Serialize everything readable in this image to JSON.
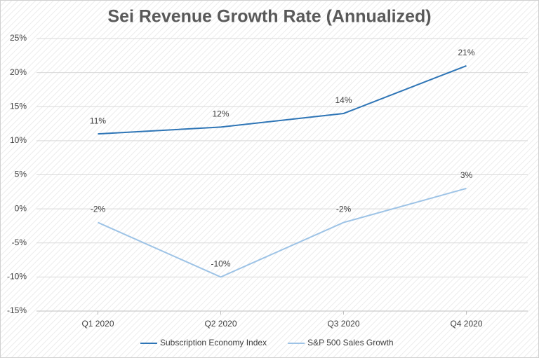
{
  "chart_data": {
    "type": "line",
    "title": "Sei Revenue Growth Rate (Annualized)",
    "categories": [
      "Q1 2020",
      "Q2 2020",
      "Q3 2020",
      "Q4 2020"
    ],
    "series": [
      {
        "name": "Subscription Economy Index",
        "color": "#2e75b6",
        "values": [
          11,
          12,
          14,
          21
        ],
        "value_labels": [
          "11%",
          "12%",
          "14%",
          "21%"
        ]
      },
      {
        "name": "S&P 500 Sales Growth",
        "color": "#9dc3e6",
        "values": [
          -2,
          -10,
          -2,
          3
        ],
        "value_labels": [
          "-2%",
          "-10%",
          "-2%",
          "3%"
        ]
      }
    ],
    "ylim": [
      -15,
      25
    ],
    "yticks": [
      {
        "value": -15,
        "label": "-15%"
      },
      {
        "value": -10,
        "label": "-10%"
      },
      {
        "value": -5,
        "label": "-5%"
      },
      {
        "value": 0,
        "label": "0%"
      },
      {
        "value": 5,
        "label": "5%"
      },
      {
        "value": 10,
        "label": "10%"
      },
      {
        "value": 15,
        "label": "15%"
      },
      {
        "value": 20,
        "label": "20%"
      },
      {
        "value": 25,
        "label": "25%"
      }
    ],
    "grid": true,
    "legend": "bottom"
  }
}
